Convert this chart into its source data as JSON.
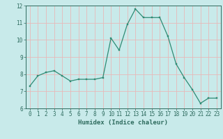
{
  "x": [
    0,
    1,
    2,
    3,
    4,
    5,
    6,
    7,
    8,
    9,
    10,
    11,
    12,
    13,
    14,
    15,
    16,
    17,
    18,
    19,
    20,
    21,
    22,
    23
  ],
  "y": [
    7.3,
    7.9,
    8.1,
    8.2,
    7.9,
    7.6,
    7.7,
    7.7,
    7.7,
    7.8,
    10.1,
    9.4,
    10.9,
    11.8,
    11.3,
    11.3,
    11.3,
    10.2,
    8.6,
    7.8,
    7.1,
    6.3,
    6.6,
    6.6
  ],
  "line_color": "#2e8b74",
  "marker_color": "#2e8b74",
  "bg_color": "#c8eaea",
  "grid_color": "#e8b8b8",
  "axis_color": "#2e6b5e",
  "xlabel": "Humidex (Indice chaleur)",
  "ylim": [
    6,
    12
  ],
  "xlim_min": -0.5,
  "xlim_max": 23.5,
  "yticks": [
    6,
    7,
    8,
    9,
    10,
    11,
    12
  ],
  "xticks": [
    0,
    1,
    2,
    3,
    4,
    5,
    6,
    7,
    8,
    9,
    10,
    11,
    12,
    13,
    14,
    15,
    16,
    17,
    18,
    19,
    20,
    21,
    22,
    23
  ],
  "label_fontsize": 6.5,
  "tick_fontsize": 5.5
}
